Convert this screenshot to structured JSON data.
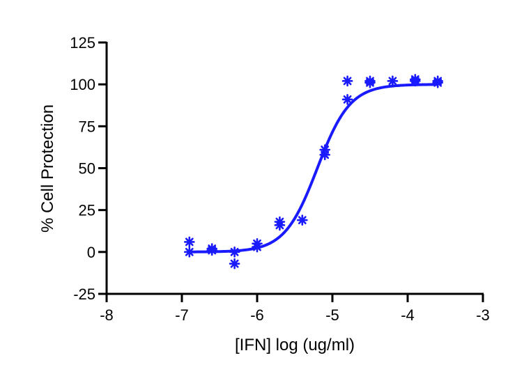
{
  "chart_data": {
    "type": "scatter",
    "title": "",
    "xlabel": "[IFN] log (ug/ml)",
    "ylabel": "% Cell Protection",
    "xlim": [
      -8,
      -3
    ],
    "ylim": [
      -25,
      125
    ],
    "xticks": [
      -8,
      -7,
      -6,
      -5,
      -4,
      -3
    ],
    "yticks": [
      -25,
      0,
      25,
      50,
      75,
      100,
      125
    ],
    "xtick_labels": [
      "-8",
      "-7",
      "-6",
      "-5",
      "-4",
      "-3"
    ],
    "ytick_labels": [
      "-25",
      "0",
      "25",
      "50",
      "75",
      "100",
      "125"
    ],
    "grid": false,
    "legend": "none",
    "series": [
      {
        "marker": "asterisk",
        "color": "#1a1aff",
        "points": [
          [
            -6.9,
            6
          ],
          [
            -6.9,
            0
          ],
          [
            -6.6,
            2
          ],
          [
            -6.6,
            1
          ],
          [
            -6.3,
            0
          ],
          [
            -6.3,
            -7
          ],
          [
            -6.0,
            5
          ],
          [
            -6.0,
            3
          ],
          [
            -5.7,
            18
          ],
          [
            -5.7,
            16
          ],
          [
            -5.4,
            19
          ],
          [
            -5.1,
            61
          ],
          [
            -5.1,
            58
          ],
          [
            -4.8,
            102
          ],
          [
            -4.8,
            91
          ],
          [
            -4.5,
            102
          ],
          [
            -4.5,
            101
          ],
          [
            -4.2,
            102
          ],
          [
            -3.9,
            103
          ],
          [
            -3.9,
            102
          ],
          [
            -3.6,
            102
          ],
          [
            -3.6,
            101
          ]
        ]
      },
      {
        "type": "line",
        "color": "#1a1aff",
        "fit": "sigmoidal dose-response",
        "bottom": 0,
        "top": 100,
        "logEC50": -5.2,
        "hill_slope": 2,
        "x_range": [
          -6.9,
          -3.6
        ]
      }
    ]
  }
}
